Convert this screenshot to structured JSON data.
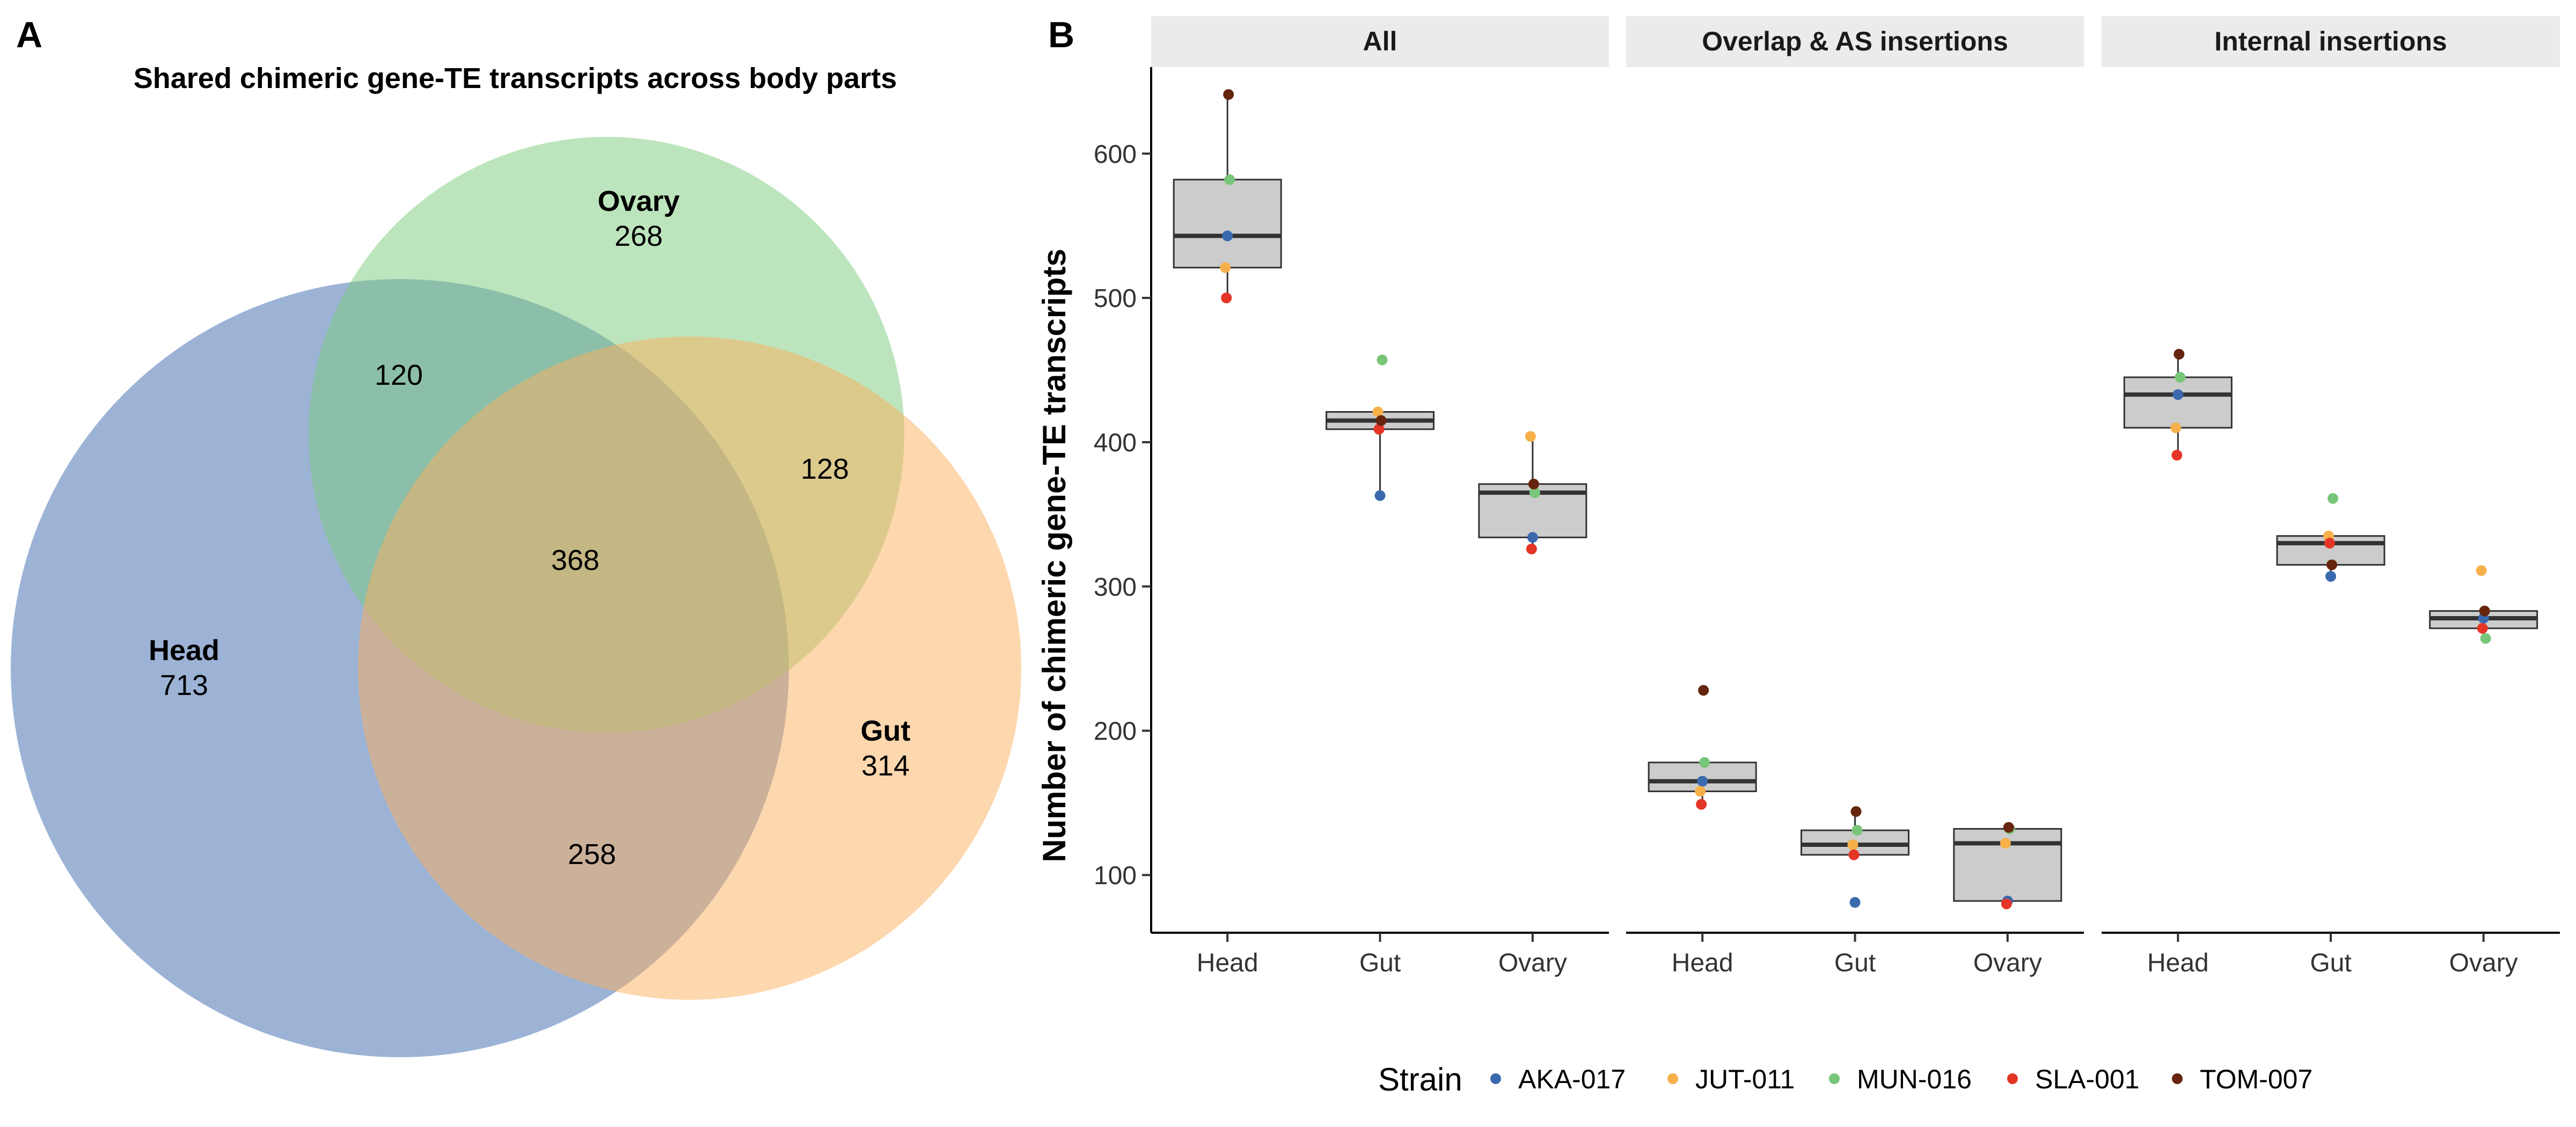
{
  "panels": {
    "a": {
      "letter": "A",
      "title": "Shared chimeric gene-TE transcripts across body parts",
      "sets": [
        {
          "key": "head",
          "name": "Head",
          "value": 713,
          "color": "#4a74b5"
        },
        {
          "key": "ovary",
          "name": "Ovary",
          "value": 268,
          "color": "#7ccb7c"
        },
        {
          "key": "gut",
          "name": "Gut",
          "value": 314,
          "color": "#fbb05e"
        }
      ],
      "intersections": {
        "head_ovary": 120,
        "ovary_gut": 128,
        "head_gut": 258,
        "all": 368
      }
    },
    "b": {
      "letter": "B",
      "ylabel": "Number of chimeric gene-TE transcripts"
    }
  },
  "chart_data": [
    {
      "type": "venn",
      "title": "Shared chimeric gene-TE transcripts across body parts",
      "sets": [
        "Head",
        "Ovary",
        "Gut"
      ],
      "regions": {
        "Head only": 713,
        "Ovary only": 268,
        "Gut only": 314,
        "Head & Ovary": 120,
        "Ovary & Gut": 128,
        "Head & Gut": 258,
        "Head & Ovary & Gut": 368
      }
    },
    {
      "type": "boxplot",
      "ylabel": "Number of chimeric gene-TE transcripts",
      "ylim": [
        60,
        660
      ],
      "yticks": [
        100,
        200,
        300,
        400,
        500,
        600
      ],
      "categories": [
        "Head",
        "Gut",
        "Ovary"
      ],
      "legend": {
        "title": "Strain",
        "position": "bottom"
      },
      "strains": [
        {
          "name": "AKA-017",
          "color": "#3a69ae"
        },
        {
          "name": "JUT-011",
          "color": "#f6b04a"
        },
        {
          "name": "MUN-016",
          "color": "#78c679"
        },
        {
          "name": "SLA-001",
          "color": "#e53526"
        },
        {
          "name": "TOM-007",
          "color": "#67250f"
        }
      ],
      "facets": [
        {
          "name": "All",
          "groups": [
            {
              "category": "Head",
              "box": {
                "min": 500,
                "q1": 521,
                "median": 543,
                "q3": 582,
                "max": 641
              },
              "points": {
                "AKA-017": 543,
                "JUT-011": 521,
                "MUN-016": 582,
                "SLA-001": 500,
                "TOM-007": 641
              }
            },
            {
              "category": "Gut",
              "box": {
                "min": 363,
                "q1": 409,
                "median": 415,
                "q3": 421,
                "max": 421
              },
              "points": {
                "AKA-017": 363,
                "JUT-011": 421,
                "MUN-016": 457,
                "SLA-001": 409,
                "TOM-007": 415
              }
            },
            {
              "category": "Ovary",
              "box": {
                "min": 326,
                "q1": 334,
                "median": 365,
                "q3": 371,
                "max": 404
              },
              "points": {
                "AKA-017": 334,
                "JUT-011": 404,
                "MUN-016": 365,
                "SLA-001": 326,
                "TOM-007": 371
              }
            }
          ]
        },
        {
          "name": "Overlap & AS insertions",
          "groups": [
            {
              "category": "Head",
              "box": {
                "min": 149,
                "q1": 158,
                "median": 165,
                "q3": 178,
                "max": 178
              },
              "points": {
                "AKA-017": 165,
                "JUT-011": 158,
                "MUN-016": 178,
                "SLA-001": 149,
                "TOM-007": 228
              }
            },
            {
              "category": "Gut",
              "box": {
                "min": 114,
                "q1": 114,
                "median": 121,
                "q3": 131,
                "max": 144
              },
              "points": {
                "AKA-017": 81,
                "JUT-011": 121,
                "MUN-016": 131,
                "SLA-001": 114,
                "TOM-007": 144
              }
            },
            {
              "category": "Ovary",
              "box": {
                "min": 80,
                "q1": 82,
                "median": 122,
                "q3": 132,
                "max": 133
              },
              "points": {
                "AKA-017": 82,
                "JUT-011": 122,
                "MUN-016": 132,
                "SLA-001": 80,
                "TOM-007": 133
              }
            }
          ]
        },
        {
          "name": "Internal insertions",
          "groups": [
            {
              "category": "Head",
              "box": {
                "min": 391,
                "q1": 410,
                "median": 433,
                "q3": 445,
                "max": 461
              },
              "points": {
                "AKA-017": 433,
                "JUT-011": 410,
                "MUN-016": 445,
                "SLA-001": 391,
                "TOM-007": 461
              }
            },
            {
              "category": "Gut",
              "box": {
                "min": 307,
                "q1": 315,
                "median": 330,
                "q3": 335,
                "max": 335
              },
              "points": {
                "AKA-017": 307,
                "JUT-011": 335,
                "MUN-016": 361,
                "SLA-001": 330,
                "TOM-007": 315
              }
            },
            {
              "category": "Ovary",
              "box": {
                "min": 264,
                "q1": 271,
                "median": 278,
                "q3": 283,
                "max": 283
              },
              "points": {
                "AKA-017": 278,
                "JUT-011": 311,
                "MUN-016": 264,
                "SLA-001": 271,
                "TOM-007": 283
              }
            }
          ]
        }
      ]
    }
  ]
}
